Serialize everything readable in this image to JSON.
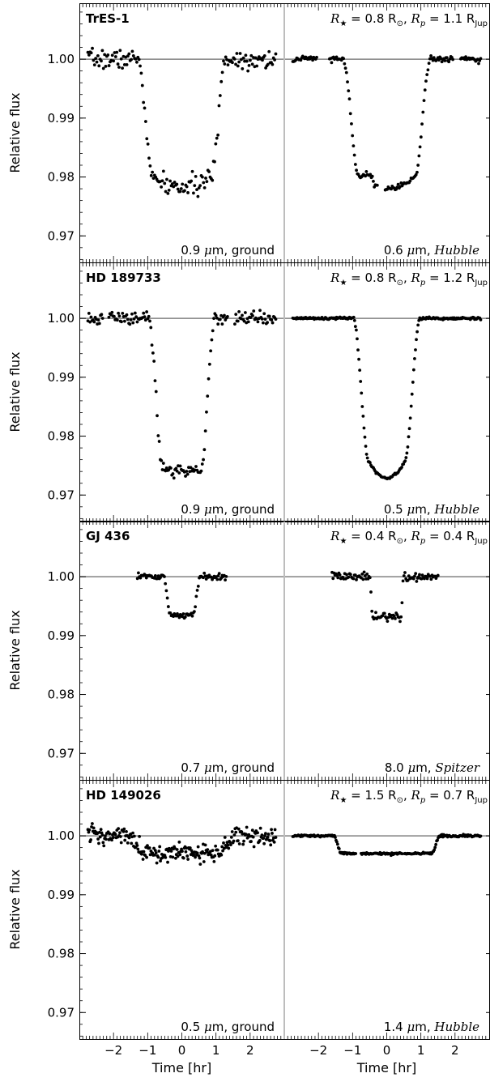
{
  "chart_data": {
    "type": "scatter",
    "y_axis_label": "Relative flux",
    "x_axis_label": "Time [hr]",
    "x_tick_labels": [
      "-2",
      "-1",
      "0",
      "1",
      "2"
    ],
    "y_tick_labels": [
      "1.00",
      "0.99",
      "0.98",
      "0.97"
    ],
    "xlim": [
      -3.0,
      3.0
    ],
    "ylim": [
      0.9655,
      1.0095
    ],
    "panels": [
      {
        "star": "TrES-1",
        "rstar": "0.8",
        "rplanet": "1.1",
        "left": {
          "wavelength": "0.9",
          "source": "ground",
          "depth": 0.021,
          "ingress": 0.42,
          "t14": 2.55,
          "noise": 0.0008,
          "limb": 0.25,
          "n": 170
        },
        "right": {
          "wavelength": "0.6",
          "source": "Hubble",
          "depth": 0.021,
          "ingress": 0.45,
          "t14": 2.55,
          "noise": 0.00025,
          "limb": 0.35,
          "n": 190,
          "gaps": [
            [
              -2.05,
              -1.7
            ],
            [
              -0.25,
              -0.05
            ],
            [
              1.95,
              2.15
            ]
          ],
          "spot": [
            -0.55,
            0.0015,
            0.12
          ]
        }
      },
      {
        "star": "HD 189733",
        "rstar": "0.8",
        "rplanet": "1.2",
        "left": {
          "wavelength": "0.9",
          "source": "ground",
          "depth": 0.0257,
          "ingress": 0.42,
          "t14": 1.95,
          "noise": 0.0006,
          "limb": 0.1,
          "n": 180,
          "gaps": [
            [
              -2.3,
              -2.15
            ],
            [
              1.35,
              1.55
            ]
          ]
        },
        "right": {
          "wavelength": "0.5",
          "source": "Hubble",
          "depth": 0.0257,
          "ingress": 0.45,
          "t14": 1.95,
          "noise": 0.0001,
          "limb": 0.4,
          "n": 220
        }
      },
      {
        "star": "GJ 436",
        "rstar": "0.4",
        "rplanet": "0.4",
        "left": {
          "wavelength": "0.7",
          "source": "ground",
          "depth": 0.0065,
          "ingress": 0.18,
          "t14": 1.05,
          "noise": 0.00025,
          "limb": 0.2,
          "n": 90,
          "range": [
            -1.3,
            1.3
          ]
        },
        "right": {
          "wavelength": "8.0",
          "source": "Spitzer",
          "depth": 0.0068,
          "ingress": 0.1,
          "t14": 1.0,
          "noise": 0.0004,
          "limb": 0.0,
          "n": 110,
          "range": [
            -1.6,
            1.5
          ]
        }
      },
      {
        "star": "HD 149026",
        "rstar": "1.5",
        "rplanet": "0.7",
        "left": {
          "wavelength": "0.5",
          "source": "ground",
          "depth": 0.003,
          "ingress": 0.5,
          "t14": 3.2,
          "noise": 0.0008,
          "limb": 0.1,
          "n": 260
        },
        "right": {
          "wavelength": "1.4",
          "source": "Hubble",
          "depth": 0.003,
          "ingress": 0.22,
          "t14": 3.1,
          "noise": 0.0001,
          "limb": 0.1,
          "n": 240,
          "gaps": [
            [
              -0.9,
              -0.75
            ],
            [
              0.45,
              0.5
            ]
          ]
        }
      }
    ]
  }
}
